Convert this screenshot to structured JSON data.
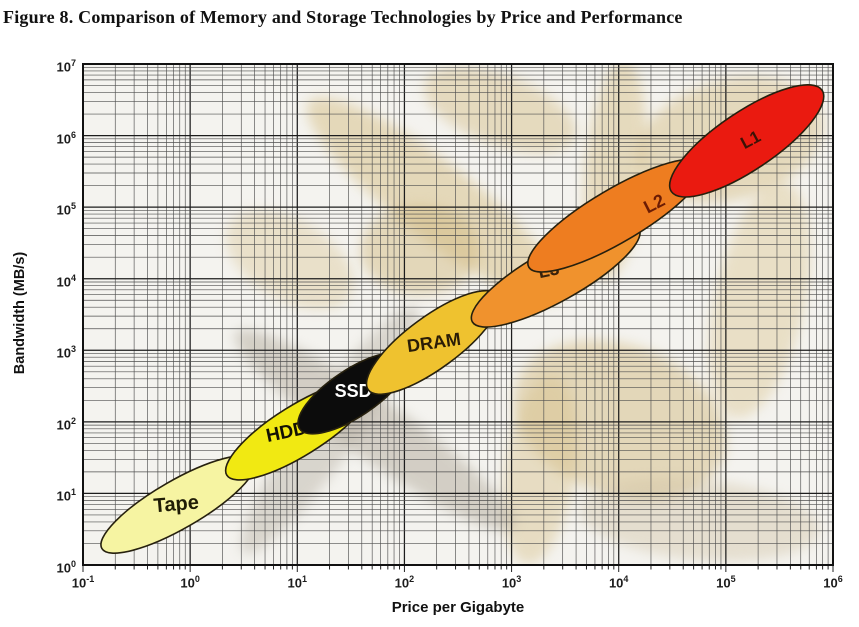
{
  "figure_title": "Figure 8. Comparison of Memory and Storage Technologies by Price and Performance",
  "chart_data": {
    "type": "scatter",
    "subtype": "labeled-ellipse-regions-on-log-log-grid",
    "title": "Figure 8. Comparison of Memory and Storage Technologies by Price and Performance",
    "xlabel": "Price per Gigabyte",
    "ylabel": "Bandwidth (MB/s)",
    "x_scale": "log",
    "y_scale": "log",
    "xlim": [
      0.1,
      1000000
    ],
    "ylim": [
      1,
      10000000
    ],
    "x_tick_exponents": [
      -1,
      0,
      1,
      2,
      3,
      4,
      5,
      6
    ],
    "y_tick_exponents": [
      0,
      1,
      2,
      3,
      4,
      5,
      6,
      7
    ],
    "grid": "log major and minor gridlines on both axes",
    "legend": "none (labels drawn inside ellipses)",
    "series": [
      {
        "name": "Tape",
        "fill": "#f6f4a2",
        "label_color": "#1f1c05",
        "price_range": [
          0.15,
          4
        ],
        "bandwidth_range": [
          1.7,
          29
        ]
      },
      {
        "name": "HDD",
        "fill": "#f1e912",
        "label_color": "#131104",
        "price_range": [
          2.2,
          48
        ],
        "bandwidth_range": [
          18,
          320
        ]
      },
      {
        "name": "SSD",
        "fill": "#0c0c0c",
        "label_color": "#ffffff",
        "price_range": [
          10.5,
          105
        ],
        "bandwidth_range": [
          80,
          790
        ]
      },
      {
        "name": "DRAM",
        "fill": "#efc22f",
        "label_color": "#2a1c06",
        "price_range": [
          46,
          740
        ],
        "bandwidth_range": [
          280,
          5900
        ]
      },
      {
        "name": "L3",
        "fill": "#f0922d",
        "label_color": "#3a220a",
        "price_range": [
          430,
          15500
        ],
        "bandwidth_range": [
          2500,
          50000
        ]
      },
      {
        "name": "L2",
        "fill": "#ee7d20",
        "label_color": "#6b1c04",
        "price_range": [
          1450,
          62000
        ],
        "bandwidth_range": [
          14500,
          400000
        ]
      },
      {
        "name": "L1",
        "fill": "#ea1a10",
        "label_color": "#3c1206",
        "price_range": [
          31000,
          790000
        ],
        "bandwidth_range": [
          165000,
          4300000
        ]
      }
    ]
  }
}
